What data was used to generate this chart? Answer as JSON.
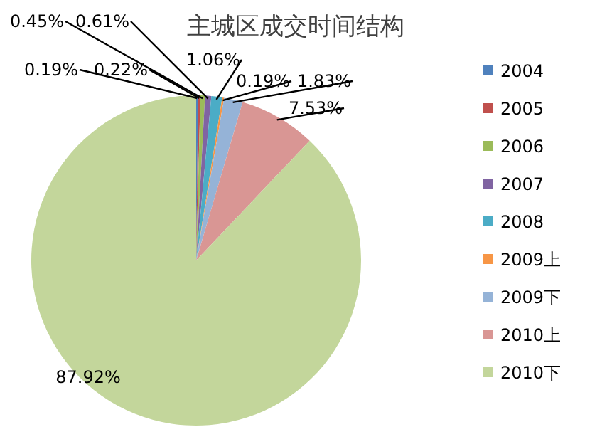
{
  "chart_data": {
    "type": "pie",
    "title": "主城区成交时间结构",
    "categories": [
      "2004",
      "2005",
      "2006",
      "2007",
      "2008",
      "2009上",
      "2009下",
      "2010上",
      "2010下"
    ],
    "values": [
      0.19,
      0.22,
      0.45,
      0.61,
      1.06,
      0.19,
      1.83,
      7.53,
      87.92
    ],
    "colors": [
      "#4f81bd",
      "#c0504d",
      "#9bbb59",
      "#8064a2",
      "#4bacc6",
      "#f79646",
      "#95b3d7",
      "#d99694",
      "#c3d69b"
    ],
    "value_labels": [
      "0.19%",
      "0.22%",
      "0.45%",
      "0.61%",
      "1.06%",
      "0.19%",
      "1.83%",
      "7.53%",
      "87.92%"
    ],
    "legend": "right"
  }
}
